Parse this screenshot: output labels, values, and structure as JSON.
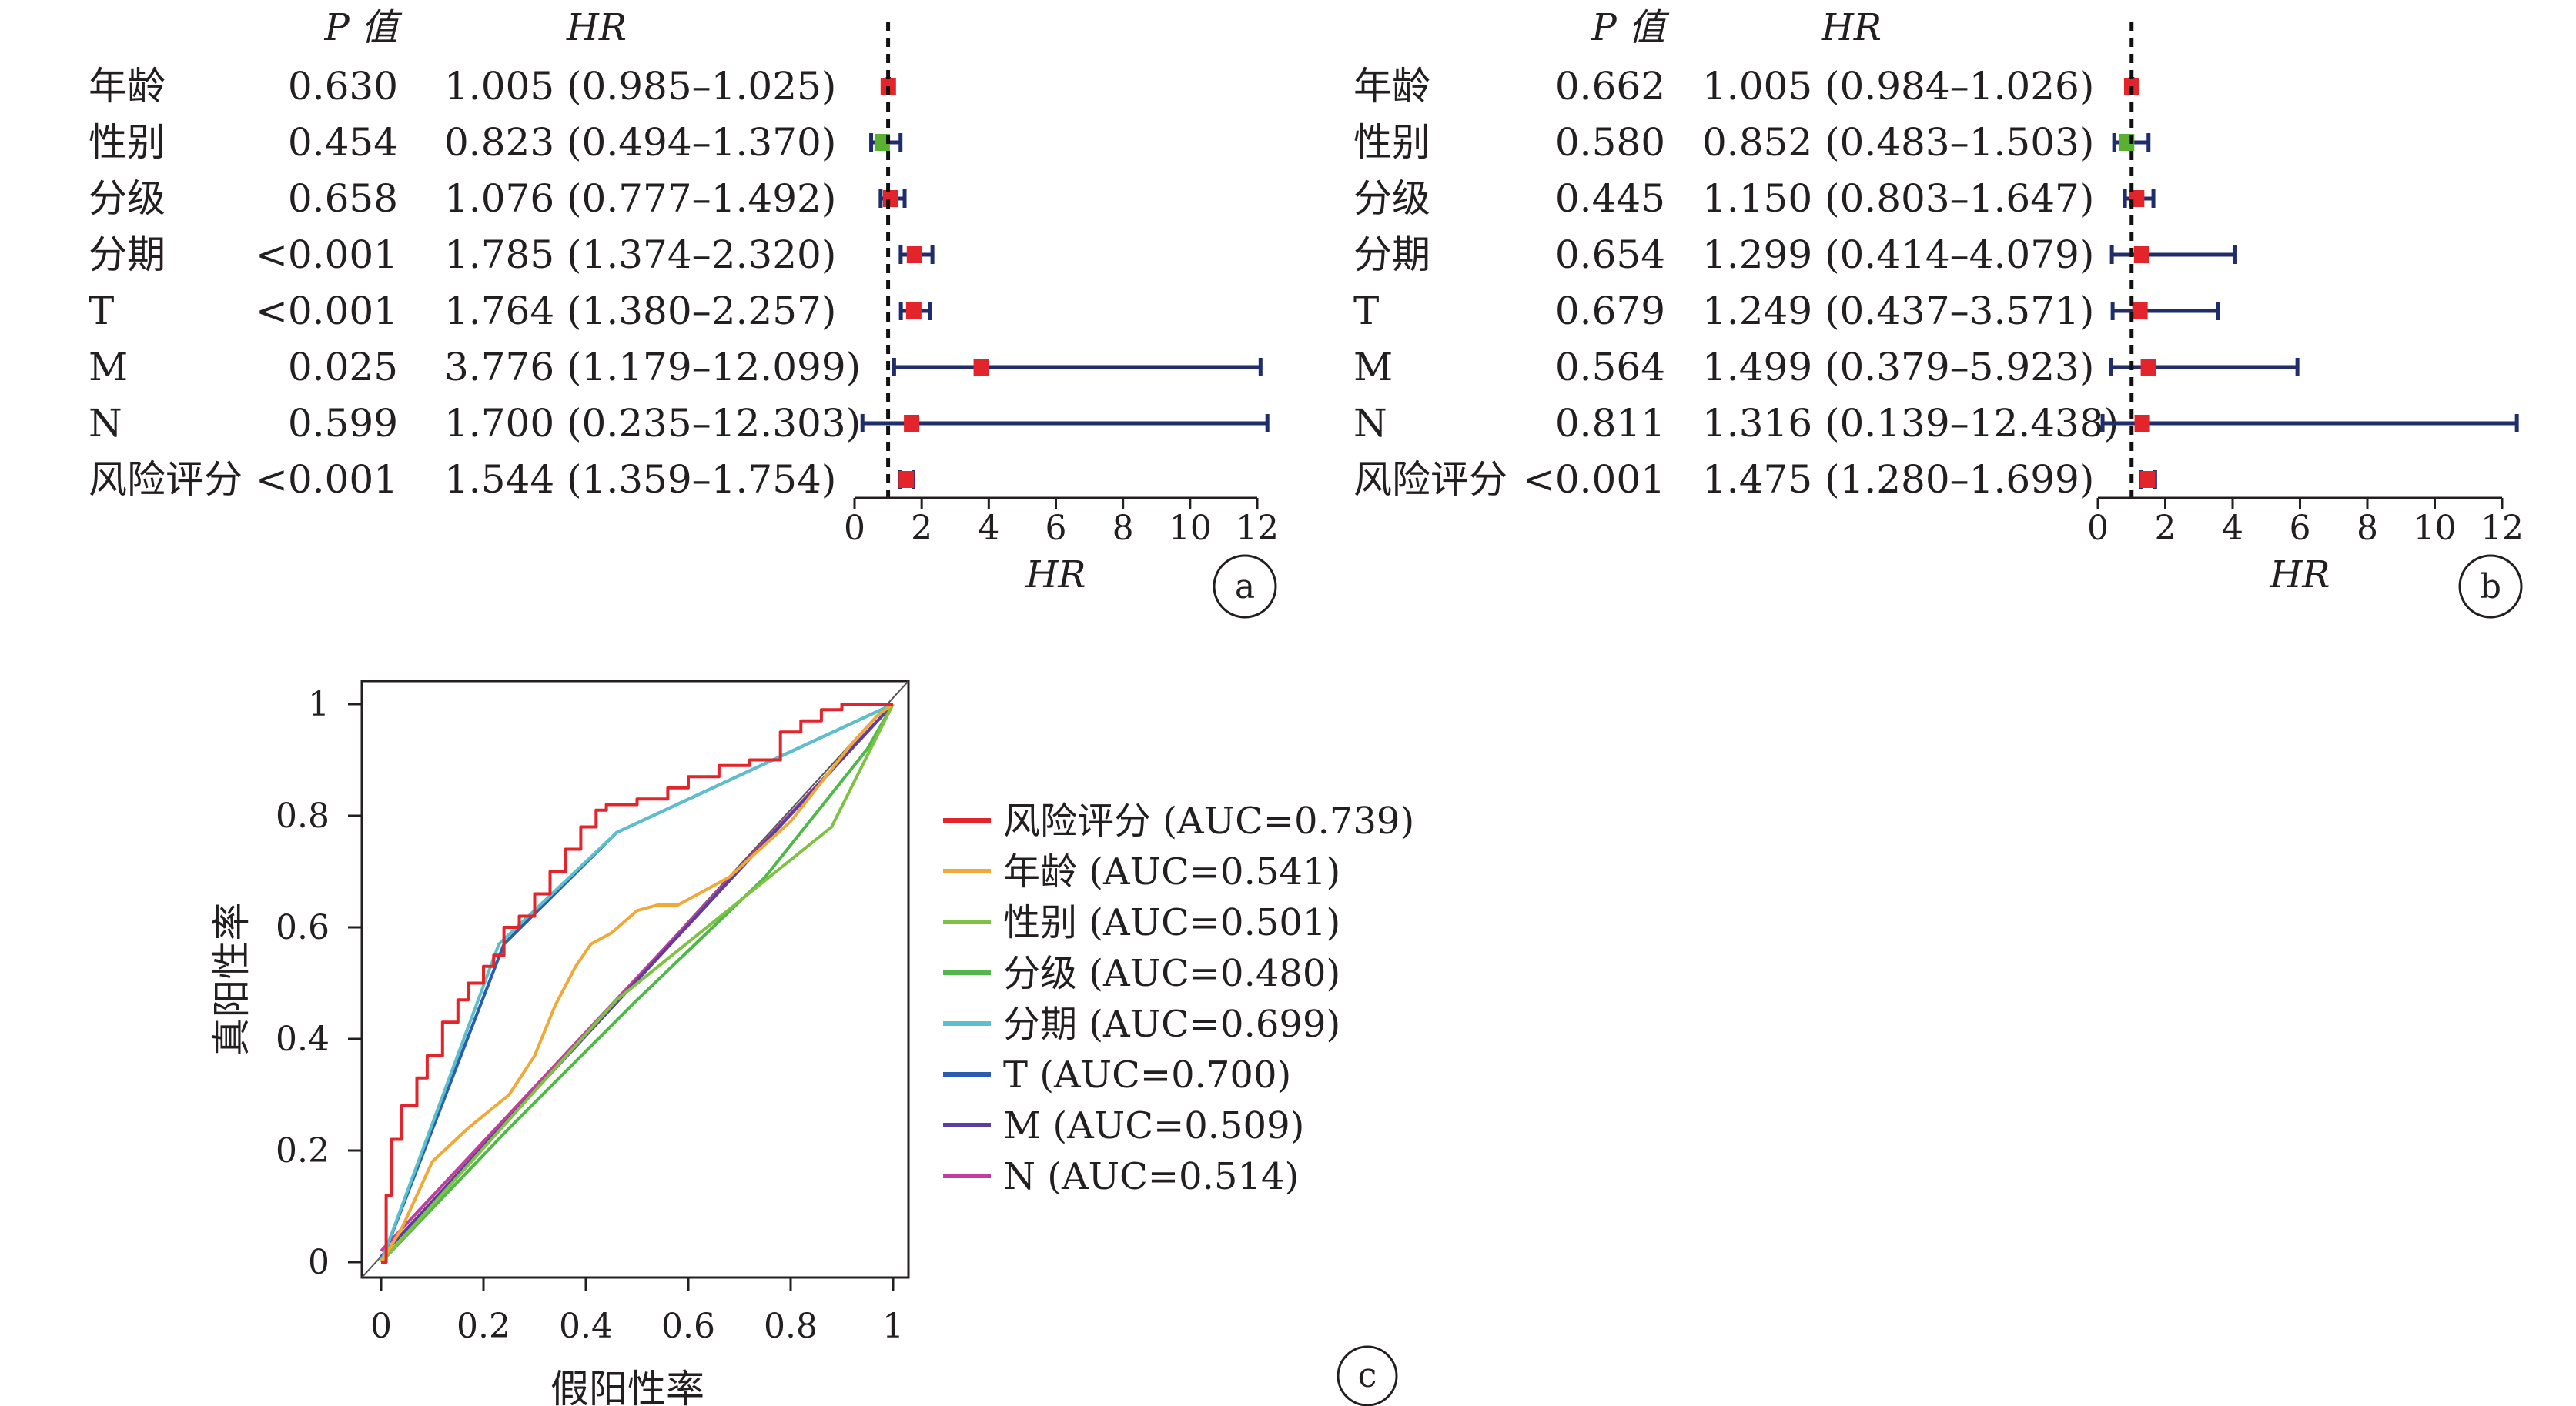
{
  "chart_data": [
    {
      "type": "forest",
      "panel_label": "a",
      "header": {
        "p": "P 值",
        "hr": "HR"
      },
      "xlabel": "HR",
      "xlim": [
        0,
        12
      ],
      "xticks": [
        0,
        2,
        4,
        6,
        8,
        10,
        12
      ],
      "reference_line": 1,
      "rows": [
        {
          "label": "年龄",
          "p": "0.630",
          "hr_text": "1.005 (0.985–1.025)",
          "hr": 1.005,
          "lo": 0.985,
          "hi": 1.025,
          "color": "#e3242b"
        },
        {
          "label": "性别",
          "p": "0.454",
          "hr_text": "0.823 (0.494–1.370)",
          "hr": 0.823,
          "lo": 0.494,
          "hi": 1.37,
          "color": "#5ab031"
        },
        {
          "label": "分级",
          "p": "0.658",
          "hr_text": "1.076 (0.777–1.492)",
          "hr": 1.076,
          "lo": 0.777,
          "hi": 1.492,
          "color": "#e3242b"
        },
        {
          "label": "分期",
          "p": "<0.001",
          "hr_text": "1.785 (1.374–2.320)",
          "hr": 1.785,
          "lo": 1.374,
          "hi": 2.32,
          "color": "#e3242b"
        },
        {
          "label": "T",
          "p": "<0.001",
          "hr_text": "1.764 (1.380–2.257)",
          "hr": 1.764,
          "lo": 1.38,
          "hi": 2.257,
          "color": "#e3242b"
        },
        {
          "label": "M",
          "p": "0.025",
          "hr_text": "3.776 (1.179–12.099)",
          "hr": 3.776,
          "lo": 1.179,
          "hi": 12.099,
          "color": "#e3242b"
        },
        {
          "label": "N",
          "p": "0.599",
          "hr_text": "1.700 (0.235–12.303)",
          "hr": 1.7,
          "lo": 0.235,
          "hi": 12.303,
          "color": "#e3242b"
        },
        {
          "label": "风险评分",
          "p": "<0.001",
          "hr_text": "1.544 (1.359–1.754)",
          "hr": 1.544,
          "lo": 1.359,
          "hi": 1.754,
          "color": "#e3242b"
        }
      ]
    },
    {
      "type": "forest",
      "panel_label": "b",
      "header": {
        "p": "P 值",
        "hr": "HR"
      },
      "xlabel": "HR",
      "xlim": [
        0,
        12
      ],
      "xticks": [
        0,
        2,
        4,
        6,
        8,
        10,
        12
      ],
      "reference_line": 1,
      "rows": [
        {
          "label": "年龄",
          "p": "0.662",
          "hr_text": "1.005 (0.984–1.026)",
          "hr": 1.005,
          "lo": 0.984,
          "hi": 1.026,
          "color": "#e3242b"
        },
        {
          "label": "性别",
          "p": "0.580",
          "hr_text": "0.852 (0.483–1.503)",
          "hr": 0.852,
          "lo": 0.483,
          "hi": 1.503,
          "color": "#5ab031"
        },
        {
          "label": "分级",
          "p": "0.445",
          "hr_text": "1.150 (0.803–1.647)",
          "hr": 1.15,
          "lo": 0.803,
          "hi": 1.647,
          "color": "#e3242b"
        },
        {
          "label": "分期",
          "p": "0.654",
          "hr_text": "1.299 (0.414–4.079)",
          "hr": 1.299,
          "lo": 0.414,
          "hi": 4.079,
          "color": "#e3242b"
        },
        {
          "label": "T",
          "p": "0.679",
          "hr_text": "1.249 (0.437–3.571)",
          "hr": 1.249,
          "lo": 0.437,
          "hi": 3.571,
          "color": "#e3242b"
        },
        {
          "label": "M",
          "p": "0.564",
          "hr_text": "1.499 (0.379–5.923)",
          "hr": 1.499,
          "lo": 0.379,
          "hi": 5.923,
          "color": "#e3242b"
        },
        {
          "label": "N",
          "p": "0.811",
          "hr_text": "1.316 (0.139–12.438)",
          "hr": 1.316,
          "lo": 0.139,
          "hi": 12.438,
          "color": "#e3242b"
        },
        {
          "label": "风险评分",
          "p": "<0.001",
          "hr_text": "1.475 (1.280–1.699)",
          "hr": 1.475,
          "lo": 1.28,
          "hi": 1.699,
          "color": "#e3242b"
        }
      ]
    },
    {
      "type": "line",
      "panel_label": "c",
      "xlabel": "假阳性率",
      "ylabel": "真阳性率",
      "xlim": [
        0,
        1
      ],
      "ylim": [
        0,
        1
      ],
      "xticks": [
        "0",
        "0.2",
        "0.4",
        "0.6",
        "0.8",
        "1"
      ],
      "yticks": [
        "0",
        "0.2",
        "0.4",
        "0.6",
        "0.8",
        "1"
      ],
      "legend_position": "right",
      "series": [
        {
          "name": "风险评分 (AUC=0.739)",
          "color": "#e3242b",
          "step": true,
          "x": [
            0,
            0.01,
            0.01,
            0.02,
            0.02,
            0.04,
            0.04,
            0.07,
            0.07,
            0.09,
            0.09,
            0.12,
            0.12,
            0.15,
            0.15,
            0.17,
            0.17,
            0.2,
            0.2,
            0.22,
            0.22,
            0.24,
            0.24,
            0.27,
            0.27,
            0.3,
            0.3,
            0.33,
            0.33,
            0.36,
            0.36,
            0.39,
            0.39,
            0.42,
            0.42,
            0.44,
            0.44,
            0.5,
            0.5,
            0.56,
            0.56,
            0.6,
            0.6,
            0.66,
            0.66,
            0.72,
            0.72,
            0.78,
            0.78,
            0.82,
            0.82,
            0.86,
            0.86,
            0.9,
            0.9,
            0.95,
            1.0
          ],
          "y": [
            0,
            0,
            0.12,
            0.12,
            0.22,
            0.22,
            0.28,
            0.28,
            0.33,
            0.33,
            0.37,
            0.37,
            0.43,
            0.43,
            0.47,
            0.47,
            0.5,
            0.5,
            0.53,
            0.53,
            0.55,
            0.55,
            0.6,
            0.6,
            0.62,
            0.62,
            0.66,
            0.66,
            0.7,
            0.7,
            0.74,
            0.74,
            0.78,
            0.78,
            0.81,
            0.81,
            0.82,
            0.82,
            0.83,
            0.83,
            0.85,
            0.85,
            0.87,
            0.87,
            0.89,
            0.89,
            0.9,
            0.9,
            0.95,
            0.95,
            0.97,
            0.97,
            0.99,
            0.99,
            1.0,
            1.0,
            1.0
          ]
        },
        {
          "name": "年龄 (AUC=0.541)",
          "color": "#f0a837",
          "x": [
            0,
            0.04,
            0.1,
            0.17,
            0.25,
            0.3,
            0.34,
            0.38,
            0.41,
            0.45,
            0.5,
            0.54,
            0.58,
            0.64,
            0.68,
            0.74,
            0.8,
            0.86,
            0.92,
            0.97,
            1.0
          ],
          "y": [
            0,
            0.06,
            0.18,
            0.24,
            0.3,
            0.37,
            0.46,
            0.53,
            0.57,
            0.59,
            0.63,
            0.64,
            0.64,
            0.67,
            0.69,
            0.74,
            0.79,
            0.86,
            0.93,
            0.98,
            1.0
          ]
        },
        {
          "name": "性别 (AUC=0.501)",
          "color": "#7dc242",
          "x": [
            0,
            0.46,
            0.88,
            1.0
          ],
          "y": [
            0,
            0.47,
            0.78,
            1.0
          ]
        },
        {
          "name": "分级 (AUC=0.480)",
          "color": "#4fb848",
          "x": [
            0,
            0.25,
            0.5,
            0.75,
            0.95,
            1.0
          ],
          "y": [
            0,
            0.24,
            0.47,
            0.69,
            0.92,
            1.0
          ]
        },
        {
          "name": "分期 (AUC=0.699)",
          "color": "#5bc0cc",
          "x": [
            0,
            0.23,
            0.46,
            1.0
          ],
          "y": [
            0,
            0.57,
            0.77,
            1.0
          ]
        },
        {
          "name": "T (AUC=0.700)",
          "color": "#2a5db0",
          "x": [
            0,
            0.24,
            0.46,
            1.0
          ],
          "y": [
            0,
            0.57,
            0.77,
            1.0
          ]
        },
        {
          "name": "M (AUC=0.509)",
          "color": "#5b3ea0",
          "x": [
            0,
            1.0
          ],
          "y": [
            0.01,
            1.0
          ]
        },
        {
          "name": "N (AUC=0.514)",
          "color": "#c13f9b",
          "x": [
            0,
            1.0
          ],
          "y": [
            0.02,
            1.0
          ]
        }
      ]
    }
  ]
}
